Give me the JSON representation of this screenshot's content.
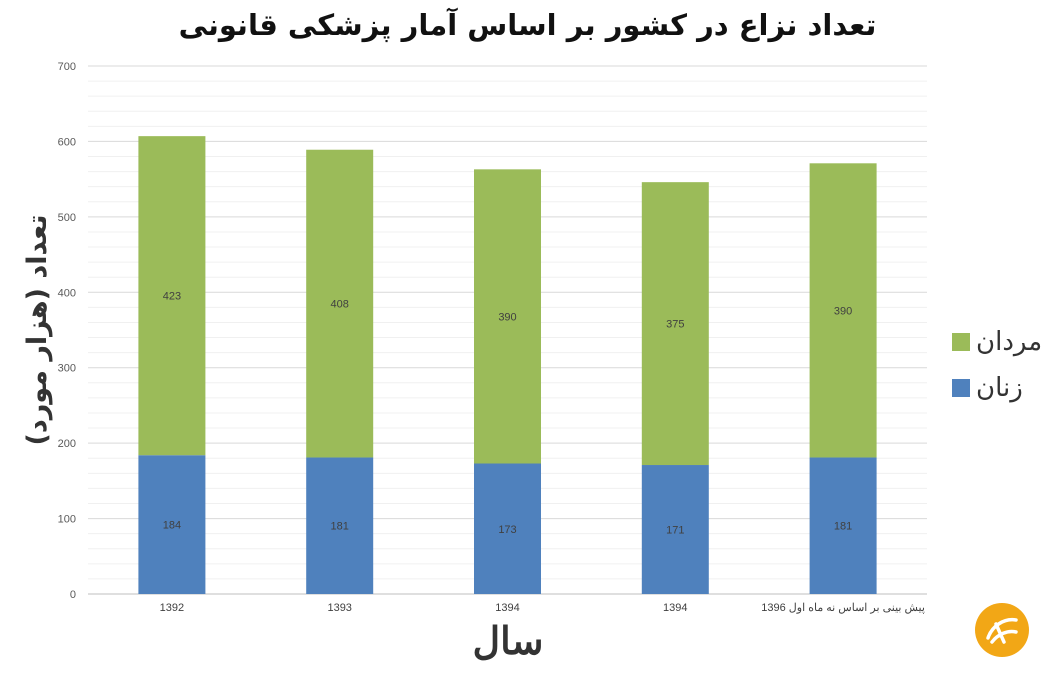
{
  "chart_data": {
    "type": "bar",
    "stacked": true,
    "title": "تعداد نزاع در کشور بر اساس آمار پزشکی قانونی",
    "xlabel": "سال",
    "ylabel": "تعداد (هزار مورد)",
    "categories": [
      "1392",
      "1393",
      "1394",
      "1394",
      "پیش بینی بر اساس نه ماه اول 1396"
    ],
    "series": [
      {
        "name": "زنان",
        "color": "#4f81bd",
        "values": [
          184,
          181,
          173,
          171,
          181
        ]
      },
      {
        "name": "مردان",
        "color": "#9bbb59",
        "values": [
          423,
          408,
          390,
          375,
          390
        ]
      }
    ],
    "ylim": [
      0,
      700
    ],
    "yticks": [
      0,
      100,
      200,
      300,
      400,
      500,
      600,
      700
    ],
    "grid": true,
    "data_labels": true,
    "legend_position": "right"
  },
  "logo": {
    "icon": "brand-logo-icon",
    "color": "#f2a716"
  }
}
